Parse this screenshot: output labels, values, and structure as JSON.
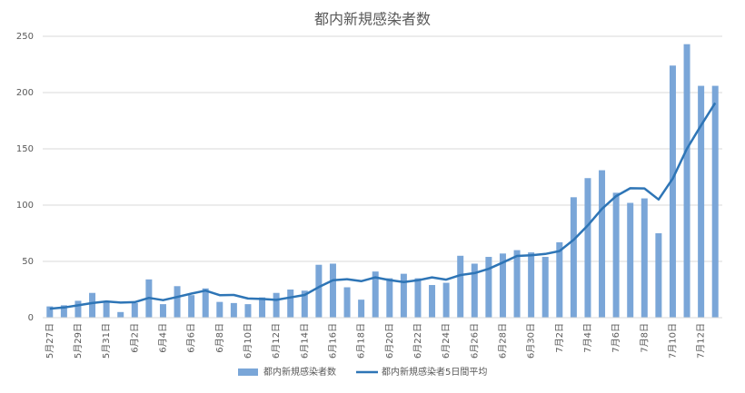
{
  "chart_data": {
    "type": "bar-line",
    "title": "都内新規感染者数",
    "categories": [
      "5月27日",
      null,
      "5月29日",
      null,
      "5月31日",
      null,
      "6月2日",
      null,
      "6月4日",
      null,
      "6月6日",
      null,
      "6月8日",
      null,
      "6月10日",
      null,
      "6月12日",
      null,
      "6月14日",
      null,
      "6月16日",
      null,
      "6月18日",
      null,
      "6月20日",
      null,
      "6月22日",
      null,
      "6月24日",
      null,
      "6月26日",
      null,
      "6月28日",
      null,
      "6月30日",
      null,
      "7月2日",
      null,
      "7月4日",
      null,
      "7月6日",
      null,
      "7月8日",
      null,
      "7月10日",
      null,
      "7月12日",
      null
    ],
    "series": [
      {
        "name": "都内新規感染者数",
        "kind": "bar",
        "color": "#7aa6d8",
        "values": [
          10,
          11,
          15,
          22,
          14,
          5,
          13,
          34,
          12,
          28,
          20,
          26,
          14,
          13,
          12,
          18,
          22,
          25,
          24,
          47,
          48,
          27,
          16,
          41,
          35,
          39,
          35,
          29,
          31,
          55,
          48,
          54,
          57,
          60,
          58,
          54,
          67,
          107,
          124,
          131,
          111,
          102,
          106,
          75,
          224,
          243,
          206,
          206
        ]
      },
      {
        "name": "都内新規感染者5日間平均",
        "kind": "line",
        "color": "#2e75b6",
        "values": [
          8,
          9,
          11,
          13,
          14.4,
          13.4,
          13.8,
          17.6,
          15.6,
          18.4,
          21.4,
          24,
          20,
          20.2,
          17,
          16.6,
          15.8,
          18,
          20.2,
          27.2,
          33.2,
          34.2,
          32.4,
          35.8,
          33.4,
          31.6,
          33.2,
          35.8,
          33.8,
          37.8,
          39.6,
          43.4,
          49,
          54.8,
          55.4,
          56.6,
          59.2,
          69.2,
          82,
          96.6,
          108,
          115,
          114.8,
          105,
          123.6,
          150,
          170.8,
          190.8
        ]
      }
    ],
    "ylim": [
      0,
      250
    ],
    "yticks": [
      0,
      50,
      100,
      150,
      200,
      250
    ],
    "grid": true,
    "legend": "bottom"
  }
}
